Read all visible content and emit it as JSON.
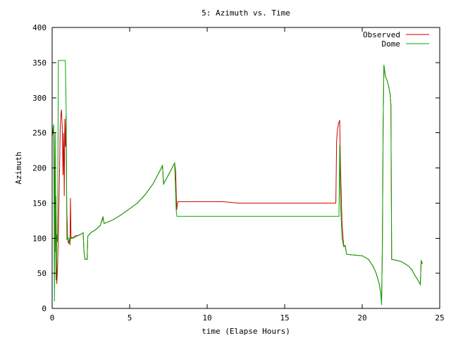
{
  "chart_data": {
    "type": "line",
    "title": "5: Azimuth vs. Time",
    "xlabel": "time (Elapse Hours)",
    "ylabel": "Azimuth",
    "xlim": [
      0,
      25
    ],
    "ylim": [
      0,
      400
    ],
    "xticks": [
      0,
      5,
      10,
      15,
      20,
      25
    ],
    "yticks": [
      0,
      50,
      100,
      150,
      200,
      250,
      300,
      350,
      400
    ],
    "grid": false,
    "legend_position": "top-right",
    "series": [
      {
        "name": "Observed",
        "color": "#cc0000",
        "points": [
          [
            0.0,
            245
          ],
          [
            0.08,
            255
          ],
          [
            0.12,
            248
          ],
          [
            0.18,
            80
          ],
          [
            0.24,
            160
          ],
          [
            0.3,
            35
          ],
          [
            0.35,
            60
          ],
          [
            0.4,
            105
          ],
          [
            0.48,
            200
          ],
          [
            0.52,
            255
          ],
          [
            0.56,
            275
          ],
          [
            0.6,
            283
          ],
          [
            0.65,
            260
          ],
          [
            0.7,
            190
          ],
          [
            0.74,
            250
          ],
          [
            0.78,
            160
          ],
          [
            0.82,
            270
          ],
          [
            0.86,
            230
          ],
          [
            0.9,
            275
          ],
          [
            0.94,
            145
          ],
          [
            1.0,
            100
          ],
          [
            1.06,
            92
          ],
          [
            1.1,
            98
          ],
          [
            1.15,
            90
          ],
          [
            1.18,
            157
          ],
          [
            1.22,
            100
          ],
          [
            1.3,
            100
          ],
          [
            1.45,
            103
          ],
          [
            1.65,
            104
          ],
          [
            1.9,
            106
          ],
          [
            2.0,
            108
          ],
          [
            2.05,
            82
          ],
          [
            2.12,
            70
          ],
          [
            2.2,
            70
          ],
          [
            2.26,
            70
          ],
          [
            2.3,
            103
          ],
          [
            2.5,
            108
          ],
          [
            2.8,
            112
          ],
          [
            3.1,
            118
          ],
          [
            3.28,
            129
          ],
          [
            3.35,
            121
          ],
          [
            3.6,
            123
          ],
          [
            4.0,
            127
          ],
          [
            4.5,
            134
          ],
          [
            5.0,
            142
          ],
          [
            5.5,
            150
          ],
          [
            6.0,
            162
          ],
          [
            6.5,
            177
          ],
          [
            7.0,
            198
          ],
          [
            7.12,
            203
          ],
          [
            7.18,
            177
          ],
          [
            7.5,
            190
          ],
          [
            7.9,
            207
          ],
          [
            7.97,
            195
          ],
          [
            8.03,
            140
          ],
          [
            8.1,
            152
          ],
          [
            9.0,
            152
          ],
          [
            10.0,
            152
          ],
          [
            11.0,
            152
          ],
          [
            11.5,
            151
          ],
          [
            12.0,
            150
          ],
          [
            13.0,
            150
          ],
          [
            14.0,
            150
          ],
          [
            15.0,
            150
          ],
          [
            16.0,
            150
          ],
          [
            17.0,
            150
          ],
          [
            18.0,
            150
          ],
          [
            18.3,
            150
          ],
          [
            18.35,
            238
          ],
          [
            18.4,
            255
          ],
          [
            18.5,
            265
          ],
          [
            18.55,
            268
          ],
          [
            18.6,
            200
          ],
          [
            18.7,
            120
          ],
          [
            18.8,
            90
          ],
          [
            18.9,
            88
          ],
          [
            19.0,
            77
          ],
          [
            19.5,
            76
          ],
          [
            20.0,
            75
          ],
          [
            20.4,
            70
          ],
          [
            20.7,
            60
          ],
          [
            20.9,
            50
          ],
          [
            21.1,
            35
          ],
          [
            21.2,
            20
          ],
          [
            21.25,
            10
          ],
          [
            21.3,
            88
          ],
          [
            21.35,
            260
          ],
          [
            21.4,
            345
          ],
          [
            21.5,
            330
          ],
          [
            21.6,
            325
          ],
          [
            21.7,
            317
          ],
          [
            21.8,
            305
          ],
          [
            21.85,
            290
          ],
          [
            21.9,
            70
          ],
          [
            22.1,
            69
          ],
          [
            22.5,
            67
          ],
          [
            22.8,
            63
          ],
          [
            23.0,
            60
          ],
          [
            23.2,
            55
          ],
          [
            23.4,
            47
          ],
          [
            23.6,
            40
          ],
          [
            23.75,
            34
          ],
          [
            23.8,
            68
          ],
          [
            23.88,
            63
          ]
        ]
      },
      {
        "name": "Dome",
        "color": "#00aa00",
        "points": [
          [
            0.0,
            250
          ],
          [
            0.1,
            262
          ],
          [
            0.15,
            10
          ],
          [
            0.2,
            250
          ],
          [
            0.25,
            40
          ],
          [
            0.3,
            105
          ],
          [
            0.35,
            95
          ],
          [
            0.4,
            353
          ],
          [
            0.8,
            353
          ],
          [
            0.85,
            353
          ],
          [
            0.9,
            290
          ],
          [
            0.95,
            98
          ],
          [
            1.05,
            100
          ],
          [
            1.1,
            100
          ],
          [
            1.15,
            92
          ],
          [
            1.2,
            102
          ],
          [
            1.35,
            100
          ],
          [
            1.6,
            103
          ],
          [
            1.9,
            106
          ],
          [
            2.0,
            108
          ],
          [
            2.05,
            82
          ],
          [
            2.12,
            70
          ],
          [
            2.2,
            70
          ],
          [
            2.26,
            70
          ],
          [
            2.3,
            103
          ],
          [
            2.5,
            108
          ],
          [
            2.8,
            112
          ],
          [
            3.1,
            118
          ],
          [
            3.28,
            131
          ],
          [
            3.35,
            121
          ],
          [
            3.6,
            123
          ],
          [
            4.0,
            127
          ],
          [
            4.5,
            134
          ],
          [
            5.0,
            142
          ],
          [
            5.5,
            150
          ],
          [
            6.0,
            162
          ],
          [
            6.5,
            177
          ],
          [
            7.0,
            198
          ],
          [
            7.12,
            204
          ],
          [
            7.18,
            177
          ],
          [
            7.5,
            190
          ],
          [
            7.9,
            207
          ],
          [
            8.0,
            140
          ],
          [
            8.05,
            131
          ],
          [
            9.0,
            131
          ],
          [
            10.0,
            131
          ],
          [
            11.0,
            131
          ],
          [
            12.0,
            131
          ],
          [
            13.0,
            131
          ],
          [
            14.0,
            131
          ],
          [
            15.0,
            131
          ],
          [
            16.0,
            131
          ],
          [
            17.0,
            131
          ],
          [
            18.0,
            131
          ],
          [
            18.5,
            131
          ],
          [
            18.55,
            233
          ],
          [
            18.6,
            150
          ],
          [
            18.7,
            100
          ],
          [
            18.8,
            88
          ],
          [
            18.9,
            90
          ],
          [
            19.0,
            77
          ],
          [
            19.5,
            76
          ],
          [
            20.0,
            75
          ],
          [
            20.4,
            70
          ],
          [
            20.7,
            60
          ],
          [
            20.9,
            50
          ],
          [
            21.1,
            35
          ],
          [
            21.2,
            20
          ],
          [
            21.25,
            5
          ],
          [
            21.3,
            88
          ],
          [
            21.35,
            260
          ],
          [
            21.4,
            347
          ],
          [
            21.5,
            330
          ],
          [
            21.6,
            325
          ],
          [
            21.7,
            317
          ],
          [
            21.8,
            305
          ],
          [
            21.85,
            290
          ],
          [
            21.9,
            70
          ],
          [
            22.1,
            69
          ],
          [
            22.5,
            67
          ],
          [
            22.8,
            63
          ],
          [
            23.0,
            60
          ],
          [
            23.2,
            55
          ],
          [
            23.4,
            47
          ],
          [
            23.6,
            40
          ],
          [
            23.75,
            34
          ],
          [
            23.8,
            68
          ],
          [
            23.88,
            65
          ]
        ]
      }
    ]
  }
}
